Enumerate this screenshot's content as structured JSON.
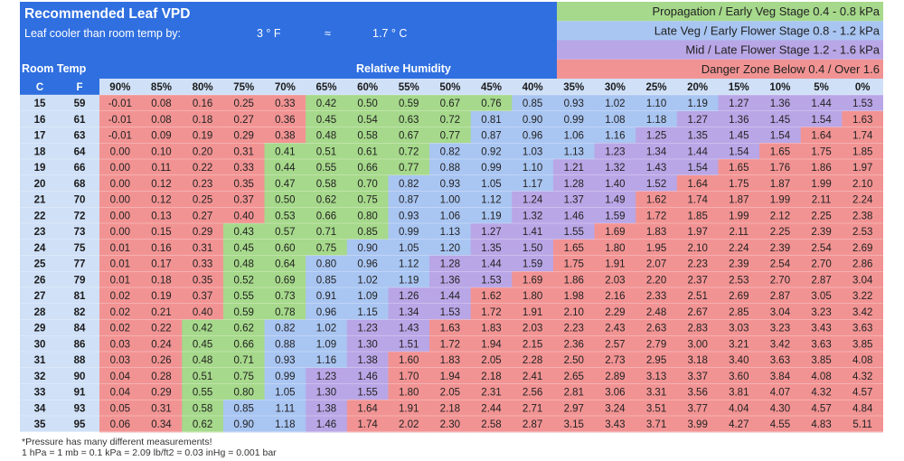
{
  "header": {
    "title": "Recommended Leaf VPD",
    "leaf_offset_label": "Leaf cooler than room temp by:",
    "leaf_offset_f": "3 ° F",
    "approx_symbol": "≈",
    "leaf_offset_c": "1.7 ° C",
    "room_temp_label": "Room Temp",
    "rh_label": "Relative Humidity",
    "col_c": "C",
    "col_f": "F"
  },
  "legend": [
    {
      "stage": "Propagation / Early Veg Stage",
      "range": "0.4 - 0.8 kPa",
      "color": "#a6d98b",
      "zone": "green"
    },
    {
      "stage": "Late Veg / Early Flower Stage",
      "range": "0.8 - 1.2 kPa",
      "color": "#a9c5f2",
      "zone": "blue"
    },
    {
      "stage": "Mid / Late Flower Stage",
      "range": "1.2 - 1.6 kPa",
      "color": "#b9a6e6",
      "zone": "purple"
    },
    {
      "stage": "Danger Zone",
      "range": "Below 0.4 / Over 1.6",
      "color": "#f29393",
      "zone": "red"
    }
  ],
  "colors": {
    "header_bg": "#2f6fe0",
    "temp_col_bg": "#cfe0f7",
    "red": "#f29393",
    "green": "#a6d98b",
    "blue": "#a9c5f2",
    "purple": "#b9a6e6"
  },
  "footnotes": {
    "line1": "*Pressure has many different measurements!",
    "line2": "1 hPa = 1 mb = 0.1 kPa = 2.09 lb/ft2 = 0.03 inHg = 0.001 bar"
  },
  "chart_data": {
    "type": "table",
    "humidity_columns": [
      "90%",
      "85%",
      "80%",
      "75%",
      "70%",
      "65%",
      "60%",
      "55%",
      "50%",
      "45%",
      "40%",
      "35%",
      "30%",
      "25%",
      "20%",
      "15%",
      "10%",
      "5%",
      "0%"
    ],
    "rows": [
      {
        "c": "15",
        "f": "59",
        "values": [
          "-0.01",
          "0.08",
          "0.16",
          "0.25",
          "0.33",
          "0.42",
          "0.50",
          "0.59",
          "0.67",
          "0.76",
          "0.85",
          "0.93",
          "1.02",
          "1.10",
          "1.19",
          "1.27",
          "1.36",
          "1.44",
          "1.53"
        ],
        "zones": "RRRRRGGGGGBBBBBPPPP"
      },
      {
        "c": "16",
        "f": "61",
        "values": [
          "-0.01",
          "0.08",
          "0.18",
          "0.27",
          "0.36",
          "0.45",
          "0.54",
          "0.63",
          "0.72",
          "0.81",
          "0.90",
          "0.99",
          "1.08",
          "1.18",
          "1.27",
          "1.36",
          "1.45",
          "1.54",
          "1.63"
        ],
        "zones": "RRRRRGGGGBBBBBPPPPR"
      },
      {
        "c": "17",
        "f": "63",
        "values": [
          "-0.01",
          "0.09",
          "0.19",
          "0.29",
          "0.38",
          "0.48",
          "0.58",
          "0.67",
          "0.77",
          "0.87",
          "0.96",
          "1.06",
          "1.16",
          "1.25",
          "1.35",
          "1.45",
          "1.54",
          "1.64",
          "1.74"
        ],
        "zones": "RRRRRGGGGBBBBPPPPRR"
      },
      {
        "c": "18",
        "f": "64",
        "values": [
          "0.00",
          "0.10",
          "0.20",
          "0.31",
          "0.41",
          "0.51",
          "0.61",
          "0.72",
          "0.82",
          "0.92",
          "1.03",
          "1.13",
          "1.23",
          "1.34",
          "1.44",
          "1.54",
          "1.65",
          "1.75",
          "1.85"
        ],
        "zones": "RRRRGGGGBBBBPPPPRRR"
      },
      {
        "c": "19",
        "f": "66",
        "values": [
          "0.00",
          "0.11",
          "0.22",
          "0.33",
          "0.44",
          "0.55",
          "0.66",
          "0.77",
          "0.88",
          "0.99",
          "1.10",
          "1.21",
          "1.32",
          "1.43",
          "1.54",
          "1.65",
          "1.76",
          "1.86",
          "1.97"
        ],
        "zones": "RRRRGGGGBBBPPPPRRRR"
      },
      {
        "c": "20",
        "f": "68",
        "values": [
          "0.00",
          "0.12",
          "0.23",
          "0.35",
          "0.47",
          "0.58",
          "0.70",
          "0.82",
          "0.93",
          "1.05",
          "1.17",
          "1.28",
          "1.40",
          "1.52",
          "1.64",
          "1.75",
          "1.87",
          "1.99",
          "2.10"
        ],
        "zones": "RRRRGGGBBBBPPPRRRRR"
      },
      {
        "c": "21",
        "f": "70",
        "values": [
          "0.00",
          "0.12",
          "0.25",
          "0.37",
          "0.50",
          "0.62",
          "0.75",
          "0.87",
          "1.00",
          "1.12",
          "1.24",
          "1.37",
          "1.49",
          "1.62",
          "1.74",
          "1.87",
          "1.99",
          "2.11",
          "2.24"
        ],
        "zones": "RRRRGGGBBBPPPRRRRRR"
      },
      {
        "c": "22",
        "f": "72",
        "values": [
          "0.00",
          "0.13",
          "0.27",
          "0.40",
          "0.53",
          "0.66",
          "0.80",
          "0.93",
          "1.06",
          "1.19",
          "1.32",
          "1.46",
          "1.59",
          "1.72",
          "1.85",
          "1.99",
          "2.12",
          "2.25",
          "2.38"
        ],
        "zones": "RRRRGGGBBBPPPRRRRRR"
      },
      {
        "c": "23",
        "f": "73",
        "values": [
          "0.00",
          "0.15",
          "0.29",
          "0.43",
          "0.57",
          "0.71",
          "0.85",
          "0.99",
          "1.13",
          "1.27",
          "1.41",
          "1.55",
          "1.69",
          "1.83",
          "1.97",
          "2.11",
          "2.25",
          "2.39",
          "2.53"
        ],
        "zones": "RRRGGGGBBPPPRRRRRRR"
      },
      {
        "c": "24",
        "f": "75",
        "values": [
          "0.01",
          "0.16",
          "0.31",
          "0.45",
          "0.60",
          "0.75",
          "0.90",
          "1.05",
          "1.20",
          "1.35",
          "1.50",
          "1.65",
          "1.80",
          "1.95",
          "2.10",
          "2.24",
          "2.39",
          "2.54",
          "2.69"
        ],
        "zones": "RRRGGGBBBPPRRRRRRRR"
      },
      {
        "c": "25",
        "f": "77",
        "values": [
          "0.01",
          "0.17",
          "0.33",
          "0.48",
          "0.64",
          "0.80",
          "0.96",
          "1.12",
          "1.28",
          "1.44",
          "1.59",
          "1.75",
          "1.91",
          "2.07",
          "2.23",
          "2.39",
          "2.54",
          "2.70",
          "2.86"
        ],
        "zones": "RRRGGBBBPPPRRRRRRRR"
      },
      {
        "c": "26",
        "f": "79",
        "values": [
          "0.01",
          "0.18",
          "0.35",
          "0.52",
          "0.69",
          "0.85",
          "1.02",
          "1.19",
          "1.36",
          "1.53",
          "1.69",
          "1.86",
          "2.03",
          "2.20",
          "2.37",
          "2.53",
          "2.70",
          "2.87",
          "3.04"
        ],
        "zones": "RRRGGBBBPPRRRRRRRRR"
      },
      {
        "c": "27",
        "f": "81",
        "values": [
          "0.02",
          "0.19",
          "0.37",
          "0.55",
          "0.73",
          "0.91",
          "1.09",
          "1.26",
          "1.44",
          "1.62",
          "1.80",
          "1.98",
          "2.16",
          "2.33",
          "2.51",
          "2.69",
          "2.87",
          "3.05",
          "3.22"
        ],
        "zones": "RRRGGBBPPRRRRRRRRRR"
      },
      {
        "c": "28",
        "f": "82",
        "values": [
          "0.02",
          "0.21",
          "0.40",
          "0.59",
          "0.78",
          "0.96",
          "1.15",
          "1.34",
          "1.53",
          "1.72",
          "1.91",
          "2.10",
          "2.29",
          "2.48",
          "2.67",
          "2.85",
          "3.04",
          "3.23",
          "3.42"
        ],
        "zones": "RRRGGBBPPRRRRRRRRRR"
      },
      {
        "c": "29",
        "f": "84",
        "values": [
          "0.02",
          "0.22",
          "0.42",
          "0.62",
          "0.82",
          "1.02",
          "1.23",
          "1.43",
          "1.63",
          "1.83",
          "2.03",
          "2.23",
          "2.43",
          "2.63",
          "2.83",
          "3.03",
          "3.23",
          "3.43",
          "3.63"
        ],
        "zones": "RRGGBBPPRRRRRRRRRRR"
      },
      {
        "c": "30",
        "f": "86",
        "values": [
          "0.03",
          "0.24",
          "0.45",
          "0.66",
          "0.88",
          "1.09",
          "1.30",
          "1.51",
          "1.72",
          "1.94",
          "2.15",
          "2.36",
          "2.57",
          "2.79",
          "3.00",
          "3.21",
          "3.42",
          "3.63",
          "3.85"
        ],
        "zones": "RRGGBBPPRRRRRRRRRRR"
      },
      {
        "c": "31",
        "f": "88",
        "values": [
          "0.03",
          "0.26",
          "0.48",
          "0.71",
          "0.93",
          "1.16",
          "1.38",
          "1.60",
          "1.83",
          "2.05",
          "2.28",
          "2.50",
          "2.73",
          "2.95",
          "3.18",
          "3.40",
          "3.63",
          "3.85",
          "4.08"
        ],
        "zones": "RRGGBBPRRRRRRRRRRRR"
      },
      {
        "c": "32",
        "f": "90",
        "values": [
          "0.04",
          "0.28",
          "0.51",
          "0.75",
          "0.99",
          "1.23",
          "1.46",
          "1.70",
          "1.94",
          "2.18",
          "2.41",
          "2.65",
          "2.89",
          "3.13",
          "3.37",
          "3.60",
          "3.84",
          "4.08",
          "4.32"
        ],
        "zones": "RRGGBPPRRRRRRRRRRRR"
      },
      {
        "c": "33",
        "f": "91",
        "values": [
          "0.04",
          "0.29",
          "0.55",
          "0.80",
          "1.05",
          "1.30",
          "1.55",
          "1.80",
          "2.05",
          "2.31",
          "2.56",
          "2.81",
          "3.06",
          "3.31",
          "3.56",
          "3.81",
          "4.07",
          "4.32",
          "4.57"
        ],
        "zones": "RRGGBPPRRRRRRRRRRRR"
      },
      {
        "c": "34",
        "f": "93",
        "values": [
          "0.05",
          "0.31",
          "0.58",
          "0.85",
          "1.11",
          "1.38",
          "1.64",
          "1.91",
          "2.18",
          "2.44",
          "2.71",
          "2.97",
          "3.24",
          "3.51",
          "3.77",
          "4.04",
          "4.30",
          "4.57",
          "4.84"
        ],
        "zones": "RRGBBPRRRRRRRRRRRRR"
      },
      {
        "c": "35",
        "f": "95",
        "values": [
          "0.06",
          "0.34",
          "0.62",
          "0.90",
          "1.18",
          "1.46",
          "1.74",
          "2.02",
          "2.30",
          "2.58",
          "2.87",
          "3.15",
          "3.43",
          "3.71",
          "3.99",
          "4.27",
          "4.55",
          "4.83",
          "5.11"
        ],
        "zones": "RRGBBPRRRRRRRRRRRRR"
      }
    ]
  }
}
